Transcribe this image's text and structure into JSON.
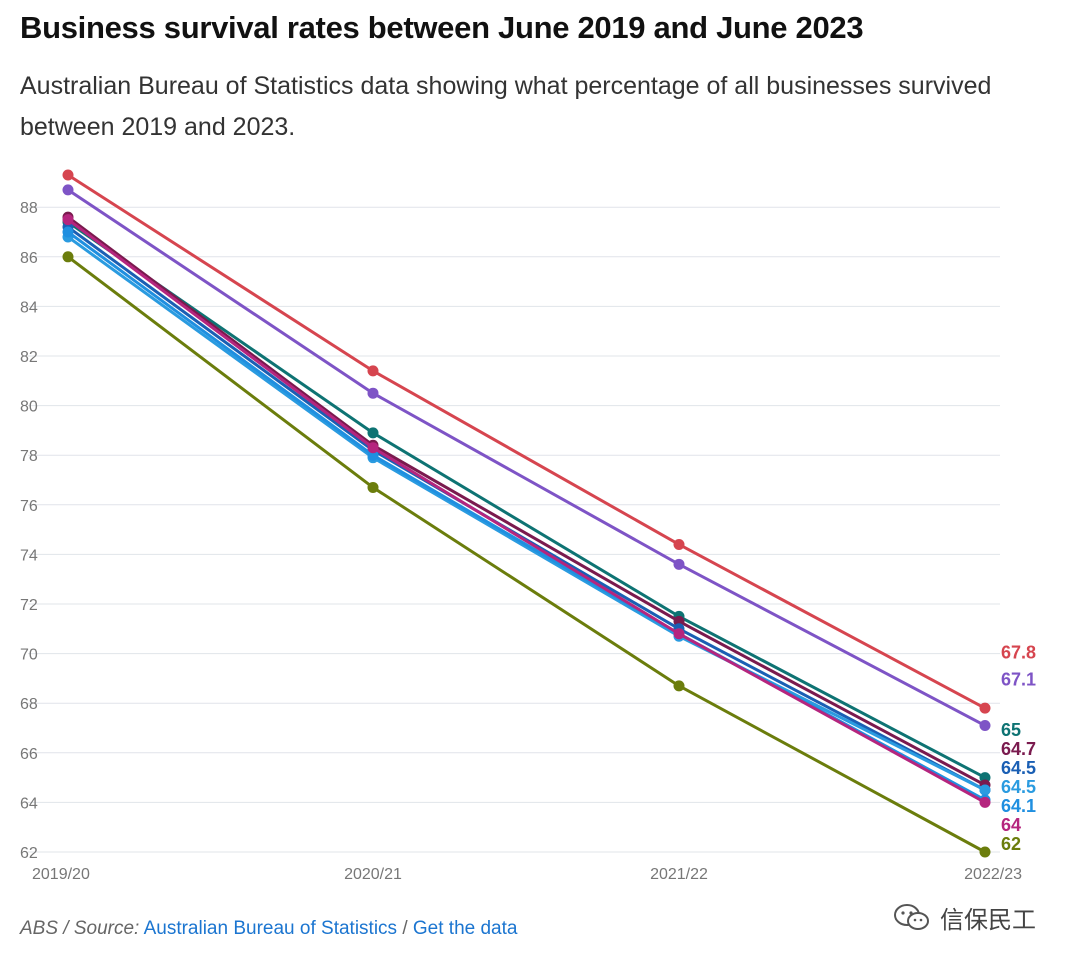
{
  "header": {
    "title": "Business survival rates between June 2019 and June 2023",
    "subtitle": "Australian Bureau of Statistics data showing what percentage of all businesses survived between 2019 and 2023."
  },
  "footer": {
    "lead": "ABS / Source:",
    "source_link": "Australian Bureau of Statistics",
    "separator": "/",
    "data_link": "Get the data",
    "link_color": "#1b75d0"
  },
  "watermark": {
    "text": "信保民工",
    "icon": "wechat-icon"
  },
  "chart_data": {
    "type": "line",
    "title": "",
    "xlabel": "",
    "ylabel": "",
    "categories": [
      "2019/20",
      "2020/21",
      "2021/22",
      "2022/23"
    ],
    "ylim": [
      62,
      89.5
    ],
    "yticks": [
      62,
      64,
      66,
      68,
      70,
      72,
      74,
      76,
      78,
      80,
      82,
      84,
      86,
      88
    ],
    "grid": true,
    "legend": "none",
    "end_labels": true,
    "series": [
      {
        "color": "#d6454f",
        "values": [
          89.3,
          81.4,
          74.4,
          67.8
        ],
        "end_label": "67.8"
      },
      {
        "color": "#7e54c6",
        "values": [
          88.7,
          80.5,
          73.6,
          67.1
        ],
        "end_label": "67.1"
      },
      {
        "color": "#0e7373",
        "values": [
          87.4,
          78.9,
          71.5,
          65
        ],
        "end_label": "65"
      },
      {
        "color": "#7a1a4e",
        "values": [
          87.6,
          78.4,
          71.3,
          64.7
        ],
        "end_label": "64.7"
      },
      {
        "color": "#1a5fb4",
        "values": [
          87.2,
          78.2,
          71.0,
          64.5
        ],
        "end_label": "64.5"
      },
      {
        "color": "#2a9be0",
        "values": [
          86.8,
          77.9,
          70.7,
          64.5
        ],
        "end_label": "64.5"
      },
      {
        "color": "#1f8fe0",
        "values": [
          87.0,
          78.0,
          70.8,
          64.1
        ],
        "end_label": "64.1"
      },
      {
        "color": "#b5257e",
        "values": [
          87.5,
          78.3,
          70.8,
          64
        ],
        "end_label": "64"
      },
      {
        "color": "#6b7d0c",
        "values": [
          86.0,
          76.7,
          68.7,
          62
        ],
        "end_label": "62"
      }
    ]
  }
}
